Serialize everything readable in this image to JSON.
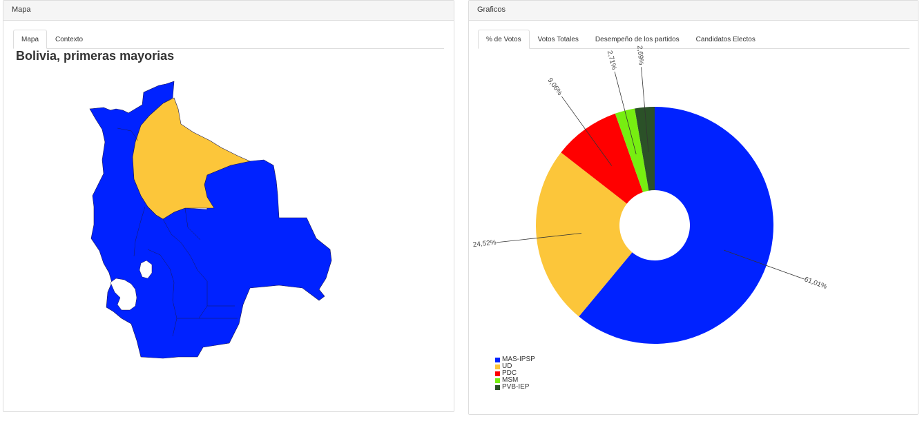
{
  "left_panel": {
    "heading": "Mapa",
    "tabs": [
      {
        "label": "Mapa",
        "active": true
      },
      {
        "label": "Contexto",
        "active": false
      }
    ],
    "map_title": "Bolivia, primeras mayorias",
    "region_colors": {
      "majority_mas": "#0022ff",
      "majority_ud": "#fcc63a"
    }
  },
  "right_panel": {
    "heading": "Graficos",
    "tabs": [
      {
        "label": "% de Votos",
        "active": true
      },
      {
        "label": "Votos Totales",
        "active": false
      },
      {
        "label": "Desempeño de los partidos",
        "active": false
      },
      {
        "label": "Candidatos Electos",
        "active": false
      }
    ]
  },
  "chart_data": {
    "type": "pie",
    "donut": true,
    "labels": [
      "MAS-IPSP",
      "UD",
      "PDC",
      "MSM",
      "PVB-IEP"
    ],
    "values": [
      61.01,
      24.52,
      9.06,
      2.71,
      2.69
    ],
    "value_labels": [
      "61,01%",
      "24,52%",
      "9,06%",
      "2,71%",
      "2,69%"
    ],
    "colors": [
      "#0022ff",
      "#fcc63a",
      "#ff0000",
      "#77ee11",
      "#2b5128"
    ],
    "legend_position": "bottom-left"
  }
}
